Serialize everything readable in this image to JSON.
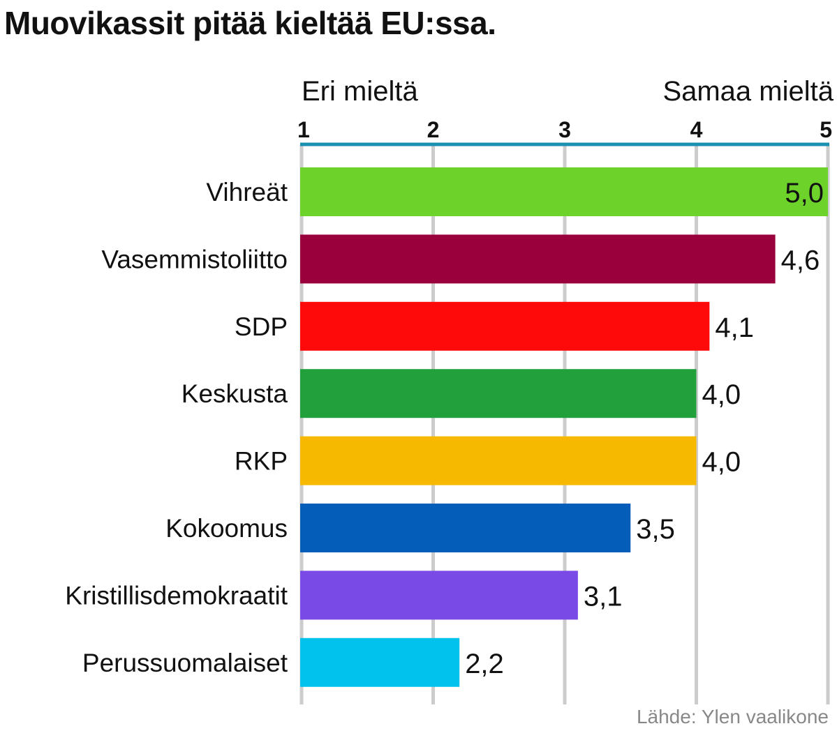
{
  "title": "Muovikassit pitää kieltää EU:ssa.",
  "source": "Lähde: Ylen vaalikone",
  "chart_data": {
    "type": "bar",
    "orientation": "horizontal",
    "xlim": [
      1,
      5
    ],
    "ticks": [
      "1",
      "2",
      "3",
      "4",
      "5"
    ],
    "low_end_label": "Eri mieltä",
    "high_end_label": "Samaa mieltä",
    "grid": true,
    "categories": [
      "Vihreät",
      "Vasemmistoliitto",
      "SDP",
      "Keskusta",
      "RKP",
      "Kokoomus",
      "Kristillisdemokraatit",
      "Perussuomalaiset"
    ],
    "values": [
      5.0,
      4.6,
      4.1,
      4.0,
      4.0,
      3.5,
      3.1,
      2.2
    ],
    "value_labels": [
      "5,0",
      "4,6",
      "4,1",
      "4,0",
      "4,0",
      "3,5",
      "3,1",
      "2,2"
    ],
    "colors": [
      "#6dd22a",
      "#99003c",
      "#fe0a0a",
      "#22a03c",
      "#f7b800",
      "#055dba",
      "#7a4ae6",
      "#00c2ec"
    ],
    "axis_color": "#1b8fb0"
  }
}
